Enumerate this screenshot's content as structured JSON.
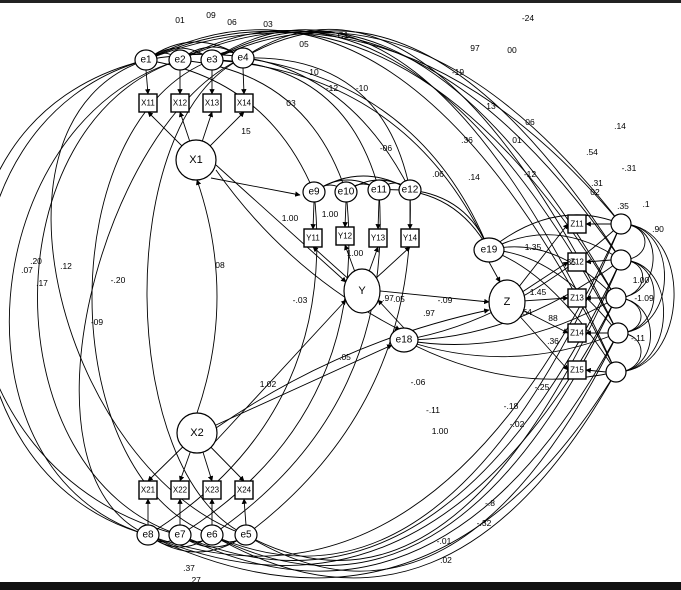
{
  "nodes": {
    "X1": "X1",
    "X2": "X2",
    "Y": "Y",
    "Z": "Z",
    "e1": "e1",
    "e2": "e2",
    "e3": "e3",
    "e4": "e4",
    "e5": "e5",
    "e6": "e6",
    "e7": "e7",
    "e8": "e8",
    "e9": "e9",
    "e10": "e10",
    "e11": "e11",
    "e12": "e12",
    "e18": "e18",
    "e19": "e19",
    "X11": "X11",
    "X12": "X12",
    "X13": "X13",
    "X14": "X14",
    "X21": "X21",
    "X22": "X22",
    "X23": "X23",
    "X24": "X24",
    "Y11": "Y11",
    "Y12": "Y12",
    "Y13": "Y13",
    "Y14": "Y14",
    "Z11": "Z11",
    "Z12": "Z12",
    "Z13": "Z13",
    "Z14": "Z14",
    "Z15": "Z15"
  },
  "coefficients": [
    "01",
    "09",
    "06",
    "03",
    "05",
    "C1",
    "-24",
    "00",
    "97",
    "-19",
    "06",
    "13",
    "03",
    "15",
    "10",
    "-12",
    "-10",
    "-06",
    ".36",
    "01",
    ".54",
    ".14",
    "-12",
    ".06",
    ".14",
    "02",
    "1.00",
    "1.00",
    "1.00",
    "1.02",
    "-09",
    "08",
    "-.03",
    "-.20",
    ".07",
    ".17",
    ".20",
    ".12",
    ".35",
    "1.35",
    "1.45",
    "88",
    ".36",
    ".54",
    ".97",
    "-.09",
    "-.06",
    "1.00",
    ".05",
    ".97",
    "-.11",
    "-.25",
    "-.02",
    "-.18",
    "-.8",
    "-.32",
    "-.01",
    ".02",
    ".27",
    ".37",
    "-1.09",
    "1.00",
    "-.11",
    ".35",
    ".1",
    ".90",
    ".05",
    ".31",
    "-.31"
  ]
}
